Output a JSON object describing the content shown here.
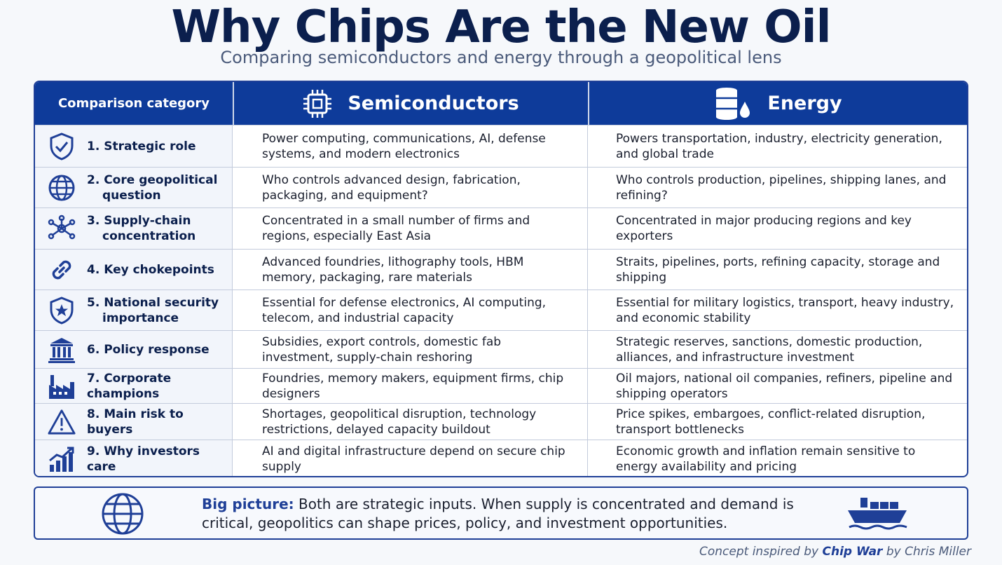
{
  "title": "Why Chips Are the New Oil",
  "subtitle": "Comparing semiconductors and energy through a geopolitical lens",
  "table": {
    "headers": {
      "category": "Comparison category",
      "semiconductors": "Semiconductors",
      "energy": "Energy"
    },
    "rows": [
      {
        "num": "1.",
        "label_1": "Strategic role",
        "label_2": "",
        "icon": "shield-check-icon",
        "semi": "Power computing, communications, AI, defense systems, and modern electronics",
        "energy": "Powers transportation, industry, electricity generation, and global trade"
      },
      {
        "num": "2.",
        "label_1": "Core geopolitical",
        "label_2": "question",
        "icon": "globe-icon",
        "semi": "Who controls advanced design, fabrication, packaging, and equipment?",
        "energy": "Who controls production, pipelines, shipping lanes, and refining?"
      },
      {
        "num": "3.",
        "label_1": "Supply-chain",
        "label_2": "concentration",
        "icon": "network-icon",
        "semi": "Concentrated in a small number of firms and regions, especially East Asia",
        "energy": "Concentrated in major producing regions and key exporters"
      },
      {
        "num": "4.",
        "label_1": "Key chokepoints",
        "label_2": "",
        "icon": "chain-link-icon",
        "semi": "Advanced foundries, lithography tools, HBM memory, packaging, rare materials",
        "energy": "Straits, pipelines, ports, refining capacity, storage and shipping"
      },
      {
        "num": "5.",
        "label_1": "National security",
        "label_2": "importance",
        "icon": "shield-star-icon",
        "semi": "Essential for defense electronics, AI computing, telecom, and industrial capacity",
        "energy": "Essential for military logistics, transport, heavy industry, and economic stability"
      },
      {
        "num": "6.",
        "label_1": "Policy response",
        "label_2": "",
        "icon": "government-building-icon",
        "semi": "Subsidies, export controls, domestic fab investment, supply-chain reshoring",
        "energy": "Strategic reserves, sanctions, domestic production, alliances, and infrastructure investment"
      },
      {
        "num": "7.",
        "label_1": "Corporate champions",
        "label_2": "",
        "icon": "factory-icon",
        "semi": "Foundries, memory makers, equipment firms, chip designers",
        "energy": "Oil majors, national oil companies, refiners, pipeline and shipping operators"
      },
      {
        "num": "8.",
        "label_1": "Main risk to buyers",
        "label_2": "",
        "icon": "warning-icon",
        "semi": "Shortages, geopolitical disruption, technology restrictions, delayed capacity buildout",
        "energy": "Price spikes, embargoes, conflict-related disruption, transport bottlenecks"
      },
      {
        "num": "9.",
        "label_1": "Why investors care",
        "label_2": "",
        "icon": "growth-chart-icon",
        "semi": "AI and digital infrastructure depend on secure chip supply",
        "energy": "Economic growth and inflation remain sensitive to energy availability and pricing"
      }
    ]
  },
  "big_picture": {
    "lead": "Big picture:",
    "text": " Both are strategic inputs. When supply is concentrated and demand is critical, geopolitics can shape prices, policy, and investment opportunities."
  },
  "credit": {
    "prefix": "Concept inspired by ",
    "book": "Chip War",
    "suffix": " by Chris Miller"
  },
  "colors": {
    "navy": "#0b1f4d",
    "header_blue": "#0e3b9a",
    "accent_blue": "#1f3f97",
    "category_bg": "#f2f5fb"
  }
}
